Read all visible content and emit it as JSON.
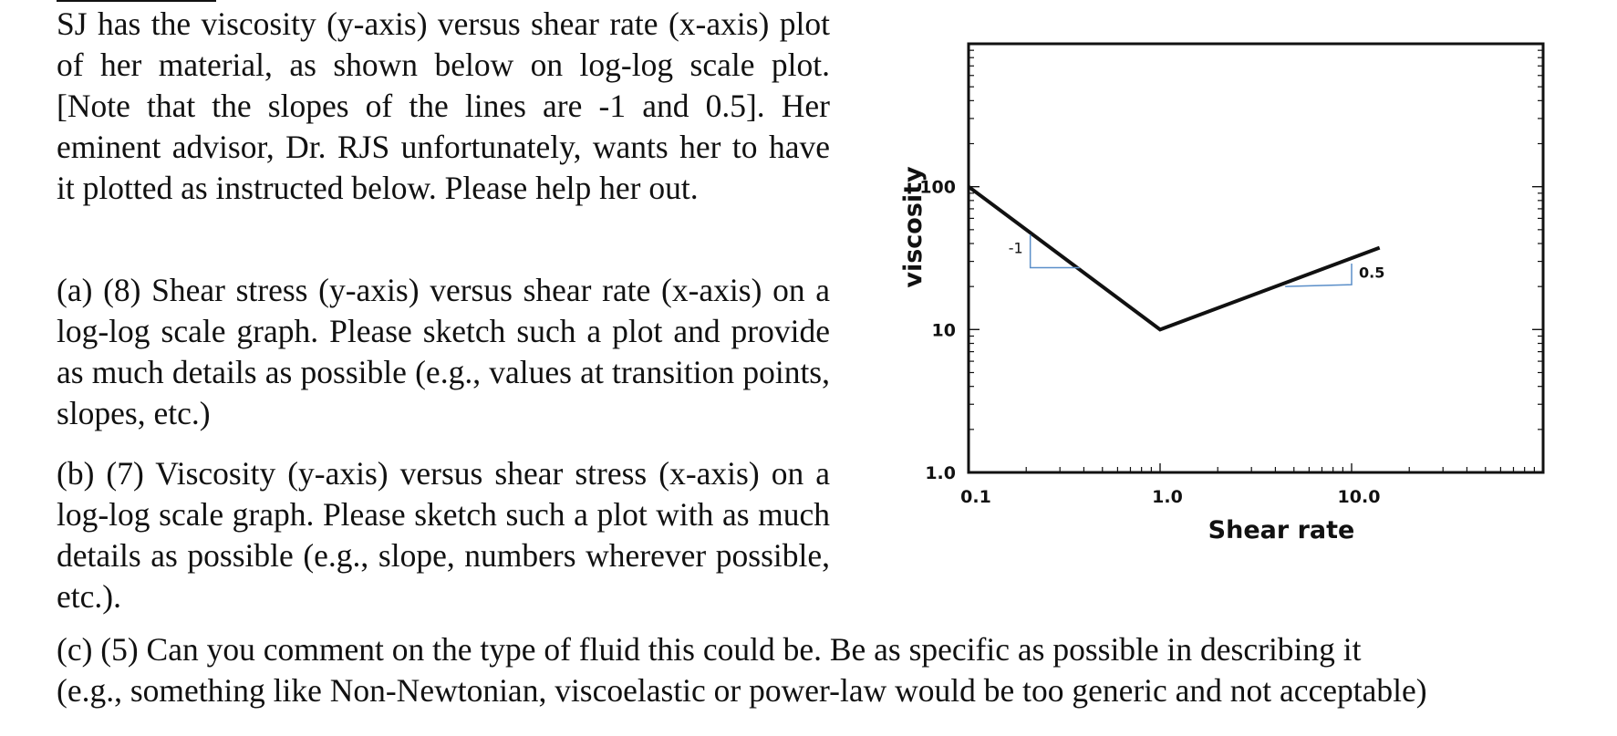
{
  "problem": {
    "intro": "SJ has the viscosity (y-axis) versus shear rate (x-axis) plot of her material, as shown below on log-log scale plot. [Note that the slopes of the lines are -1 and 0.5]. Her eminent advisor, Dr. RJS unfortunately, wants her to have it plotted as instructed below. Please help her out.",
    "part_a": "(a) (8) Shear stress (y-axis) versus shear rate (x-axis) on a log-log scale graph. Please sketch such a plot and provide as much details as possible (e.g., values at transition points, slopes, etc.)",
    "part_b": "(b) (7) Viscosity (y-axis) versus shear stress (x-axis) on a log-log scale graph. Please sketch such a plot with as much details as possible (e.g., slope, numbers wherever possible, etc.).",
    "part_c_line1": "(c) (5) Can you comment on the type of fluid this could be. Be as specific as possible in describing it",
    "part_c_line2": "(e.g., something like Non-Newtonian, viscoelastic or power-law would be too generic and not acceptable)"
  },
  "chart_data": {
    "type": "line",
    "xscale": "log",
    "yscale": "log",
    "xlabel": "Shear rate",
    "ylabel": "viscosity",
    "xlim": [
      0.1,
      100
    ],
    "ylim": [
      1,
      1000
    ],
    "xticks": [
      0.1,
      1,
      10
    ],
    "xtick_labels": [
      "0.1",
      "1.0",
      "10.0"
    ],
    "yticks": [
      1,
      10,
      100
    ],
    "ytick_labels": [
      "1.0",
      "10",
      "100"
    ],
    "grid": false,
    "series": [
      {
        "x": [
          0.1,
          1,
          14
        ],
        "y": [
          100,
          10,
          37.4
        ]
      }
    ],
    "annotations": [
      {
        "text": "-1",
        "slope": -1
      },
      {
        "text": "0.5",
        "slope": 0.5
      }
    ]
  }
}
